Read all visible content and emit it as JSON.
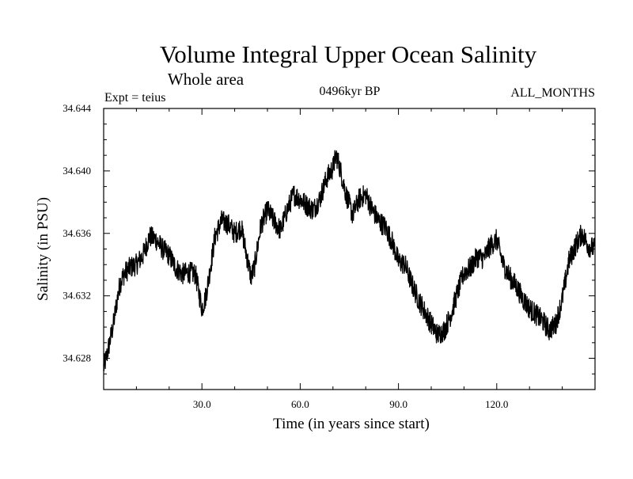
{
  "chart_data": {
    "type": "line",
    "title": "Volume Integral Upper Ocean Salinity",
    "subtitle": "Whole area",
    "left_header": "Expt = teius",
    "center_header": "0496kyr BP",
    "right_header": "ALL_MONTHS",
    "xlabel": "Time (in years since start)",
    "ylabel": "Salinity (in PSU)",
    "xlim": [
      0,
      150
    ],
    "ylim": [
      34.626,
      34.644
    ],
    "x_ticks": [
      30,
      60,
      90,
      120
    ],
    "x_tick_labels": [
      "30.0",
      "60.0",
      "90.0",
      "120.0"
    ],
    "y_ticks": [
      34.628,
      34.632,
      34.636,
      34.64,
      34.644
    ],
    "y_tick_labels": [
      "34.628",
      "34.632",
      "34.636",
      "34.640",
      "34.644"
    ],
    "grid": false,
    "series": [
      {
        "name": "Salinity",
        "color": "#000000",
        "noise_amplitude": 0.0007,
        "x": [
          0,
          1,
          2,
          3,
          4,
          5,
          6,
          7,
          8,
          10,
          12,
          14,
          16,
          18,
          20,
          22,
          24,
          26,
          28,
          30,
          31,
          32,
          34,
          36,
          38,
          40,
          42,
          44,
          45,
          46,
          48,
          50,
          52,
          54,
          56,
          58,
          60,
          62,
          64,
          66,
          68,
          70,
          71,
          72,
          74,
          76,
          78,
          80,
          82,
          84,
          86,
          88,
          90,
          92,
          94,
          96,
          98,
          100,
          102,
          104,
          106,
          108,
          110,
          112,
          114,
          116,
          118,
          120,
          122,
          124,
          126,
          128,
          130,
          132,
          134,
          136,
          138,
          140,
          142,
          144,
          146,
          148,
          150
        ],
        "values": [
          34.6274,
          34.6282,
          34.6292,
          34.6302,
          34.6316,
          34.6328,
          34.6333,
          34.6336,
          34.6338,
          34.634,
          34.6346,
          34.6358,
          34.6356,
          34.635,
          34.6346,
          34.6338,
          34.6334,
          34.6335,
          34.6334,
          34.6312,
          34.6318,
          34.633,
          34.6358,
          34.6368,
          34.6366,
          34.636,
          34.6364,
          34.6342,
          34.6332,
          34.6338,
          34.6365,
          34.6375,
          34.6368,
          34.6362,
          34.6375,
          34.6385,
          34.6382,
          34.6378,
          34.6375,
          34.6382,
          34.6395,
          34.6402,
          34.641,
          34.6403,
          34.6385,
          34.6372,
          34.6382,
          34.6385,
          34.6375,
          34.6368,
          34.6364,
          34.6355,
          34.6342,
          34.634,
          34.6328,
          34.6318,
          34.631,
          34.6302,
          34.6295,
          34.6298,
          34.6308,
          34.6322,
          34.6335,
          34.6338,
          34.6345,
          34.6344,
          34.6352,
          34.6356,
          34.634,
          34.6332,
          34.6326,
          34.6318,
          34.6312,
          34.6308,
          34.6304,
          34.6298,
          34.6302,
          34.6318,
          34.6342,
          34.6352,
          34.636,
          34.6352,
          34.635
        ]
      }
    ]
  }
}
